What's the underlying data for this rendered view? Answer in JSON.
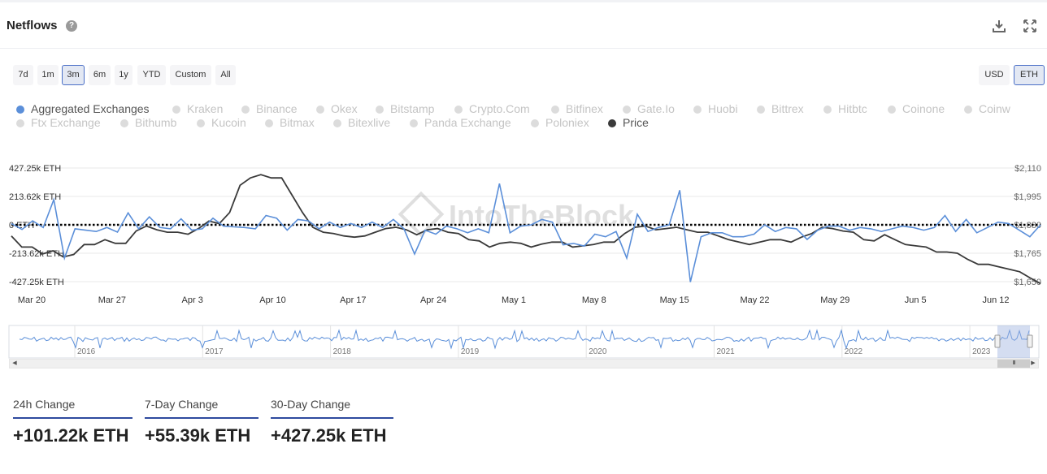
{
  "header": {
    "title": "Netflows",
    "help_glyph": "?"
  },
  "range_buttons": [
    {
      "label": "7d",
      "active": false
    },
    {
      "label": "1m",
      "active": false
    },
    {
      "label": "3m",
      "active": true
    },
    {
      "label": "6m",
      "active": false
    },
    {
      "label": "1y",
      "active": false
    },
    {
      "label": "YTD",
      "active": false
    },
    {
      "label": "Custom",
      "active": false
    },
    {
      "label": "All",
      "active": false
    }
  ],
  "unit_buttons": [
    {
      "label": "USD",
      "active": false
    },
    {
      "label": "ETH",
      "active": true
    }
  ],
  "legend": [
    {
      "label": "Aggregated Exchanges",
      "active": true,
      "color": "#5b8fd9"
    },
    {
      "label": "Kraken",
      "active": false
    },
    {
      "label": "Binance",
      "active": false
    },
    {
      "label": "Okex",
      "active": false
    },
    {
      "label": "Bitstamp",
      "active": false
    },
    {
      "label": "Crypto.Com",
      "active": false
    },
    {
      "label": "Bitfinex",
      "active": false
    },
    {
      "label": "Gate.Io",
      "active": false
    },
    {
      "label": "Huobi",
      "active": false
    },
    {
      "label": "Bittrex",
      "active": false
    },
    {
      "label": "Hitbtc",
      "active": false
    },
    {
      "label": "Coinone",
      "active": false
    },
    {
      "label": "Coinw",
      "active": false
    },
    {
      "label": "Ftx Exchange",
      "active": false
    },
    {
      "label": "Bithumb",
      "active": false
    },
    {
      "label": "Kucoin",
      "active": false
    },
    {
      "label": "Bitmax",
      "active": false
    },
    {
      "label": "Bitexlive",
      "active": false
    },
    {
      "label": "Panda Exchange",
      "active": false
    },
    {
      "label": "Poloniex",
      "active": false
    },
    {
      "label": "Price",
      "active": true,
      "color": "#3a3a3a"
    }
  ],
  "chart_data": {
    "type": "line",
    "title": "Netflows",
    "watermark": "IntoTheBlock",
    "left_axis": {
      "unit": "ETH",
      "range": [
        -427.25,
        427.25
      ],
      "ticks": [
        427.25,
        213.62,
        0,
        -213.62,
        -427.25
      ],
      "tick_labels": [
        "427.25k ETH",
        "213.62k ETH",
        "0 ETH",
        "-213.62k ETH",
        "-427.25k ETH"
      ]
    },
    "right_axis": {
      "unit": "USD",
      "range": [
        1650,
        2110
      ],
      "ticks": [
        2110,
        1995,
        1880,
        1765,
        1650
      ],
      "tick_labels": [
        "$2,110",
        "$1,995",
        "$1,880",
        "$1,765",
        "$1,650"
      ]
    },
    "x_tick_labels": [
      "Mar 20",
      "Mar 27",
      "Apr 3",
      "Apr 10",
      "Apr 17",
      "Apr 24",
      "May 1",
      "May 8",
      "May 15",
      "May 22",
      "May 29",
      "Jun 5",
      "Jun 12"
    ],
    "reference_line": 0,
    "series": [
      {
        "name": "Aggregated Exchanges",
        "axis": "left",
        "color": "#5b8fd9",
        "values": [
          10,
          -35,
          30,
          -20,
          190,
          -250,
          -30,
          -40,
          -50,
          -20,
          -55,
          90,
          -30,
          60,
          -20,
          -30,
          45,
          -40,
          -30,
          50,
          -10,
          -15,
          -20,
          -30,
          70,
          50,
          -40,
          40,
          30,
          -30,
          20,
          -20,
          10,
          -20,
          20,
          -20,
          40,
          -30,
          -220,
          -40,
          -70,
          -10,
          -30,
          -60,
          -30,
          -60,
          310,
          -60,
          -10,
          0,
          40,
          20,
          -150,
          -140,
          -160,
          -70,
          -90,
          -50,
          -250,
          80,
          -50,
          -20,
          0,
          260,
          -430,
          -90,
          -60,
          -60,
          -90,
          -90,
          -70,
          0,
          -50,
          -20,
          -30,
          -110,
          -40,
          -10,
          -10,
          -40,
          -20,
          -30,
          -50,
          -30,
          -10,
          -20,
          -40,
          -20,
          70,
          -50,
          40,
          -60,
          -20,
          20,
          10,
          -40,
          -90,
          0
        ]
      },
      {
        "name": "Price",
        "axis": "right",
        "color": "#3a3a3a",
        "values": [
          1835,
          1790,
          1790,
          1762,
          1775,
          1750,
          1760,
          1800,
          1800,
          1820,
          1805,
          1805,
          1855,
          1875,
          1860,
          1850,
          1850,
          1842,
          1865,
          1895,
          1885,
          1930,
          2040,
          2070,
          2083,
          2070,
          2070,
          2000,
          1930,
          1870,
          1850,
          1845,
          1835,
          1830,
          1835,
          1850,
          1865,
          1870,
          1860,
          1840,
          1860,
          1865,
          1850,
          1845,
          1820,
          1815,
          1790,
          1805,
          1810,
          1805,
          1790,
          1802,
          1810,
          1810,
          1790,
          1795,
          1800,
          1810,
          1810,
          1845,
          1870,
          1875,
          1860,
          1865,
          1870,
          1860,
          1850,
          1850,
          1835,
          1820,
          1810,
          1800,
          1810,
          1820,
          1820,
          1810,
          1830,
          1845,
          1870,
          1865,
          1855,
          1850,
          1820,
          1815,
          1840,
          1820,
          1800,
          1795,
          1790,
          1770,
          1770,
          1765,
          1740,
          1720,
          1720,
          1710,
          1700,
          1690,
          1665,
          1642
        ]
      }
    ],
    "navigator_years": [
      "2016",
      "2017",
      "2018",
      "2019",
      "2020",
      "2021",
      "2022",
      "2023"
    ]
  },
  "scrollbar": {
    "left_arrow": "◀",
    "right_arrow": "▶",
    "thumb_grip": "III"
  },
  "stats": [
    {
      "label": "24h Change",
      "value": "+101.22k ETH"
    },
    {
      "label": "7-Day Change",
      "value": "+55.39k ETH"
    },
    {
      "label": "30-Day Change",
      "value": "+427.25k ETH"
    }
  ],
  "colors": {
    "accent": "#2e4a9e",
    "flows": "#5b8fd9",
    "price": "#3a3a3a"
  }
}
